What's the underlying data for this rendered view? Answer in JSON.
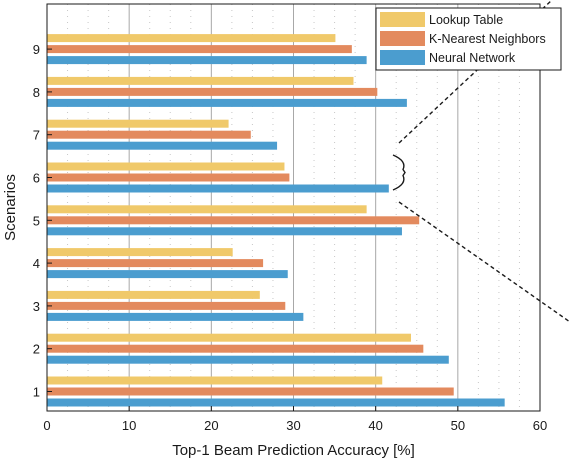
{
  "chart_data": {
    "type": "bar",
    "orientation": "horizontal",
    "categories": [
      "1",
      "2",
      "3",
      "4",
      "5",
      "6",
      "7",
      "8",
      "9"
    ],
    "series": [
      {
        "name": "Lookup Table",
        "color": "#f0c96a",
        "values": [
          40.8,
          44.3,
          25.9,
          22.6,
          38.9,
          28.9,
          22.1,
          37.3,
          35.1
        ]
      },
      {
        "name": "K-Nearest Neighbors",
        "color": "#e38a5e",
        "values": [
          49.5,
          45.8,
          29.0,
          26.3,
          45.3,
          29.5,
          24.8,
          40.2,
          37.1
        ]
      },
      {
        "name": "Neural Network",
        "color": "#4b9dcf",
        "values": [
          55.7,
          48.9,
          31.2,
          29.3,
          43.2,
          41.6,
          28.0,
          43.8,
          38.9
        ]
      }
    ],
    "xlabel": "Top-1 Beam Prediction Accuracy [%]",
    "ylabel": "Scenarios",
    "xlim": [
      0,
      60
    ],
    "xticks": [
      "0",
      "10",
      "20",
      "30",
      "40",
      "50",
      "60"
    ],
    "grid": "vertical",
    "legend_position": "top-right"
  }
}
